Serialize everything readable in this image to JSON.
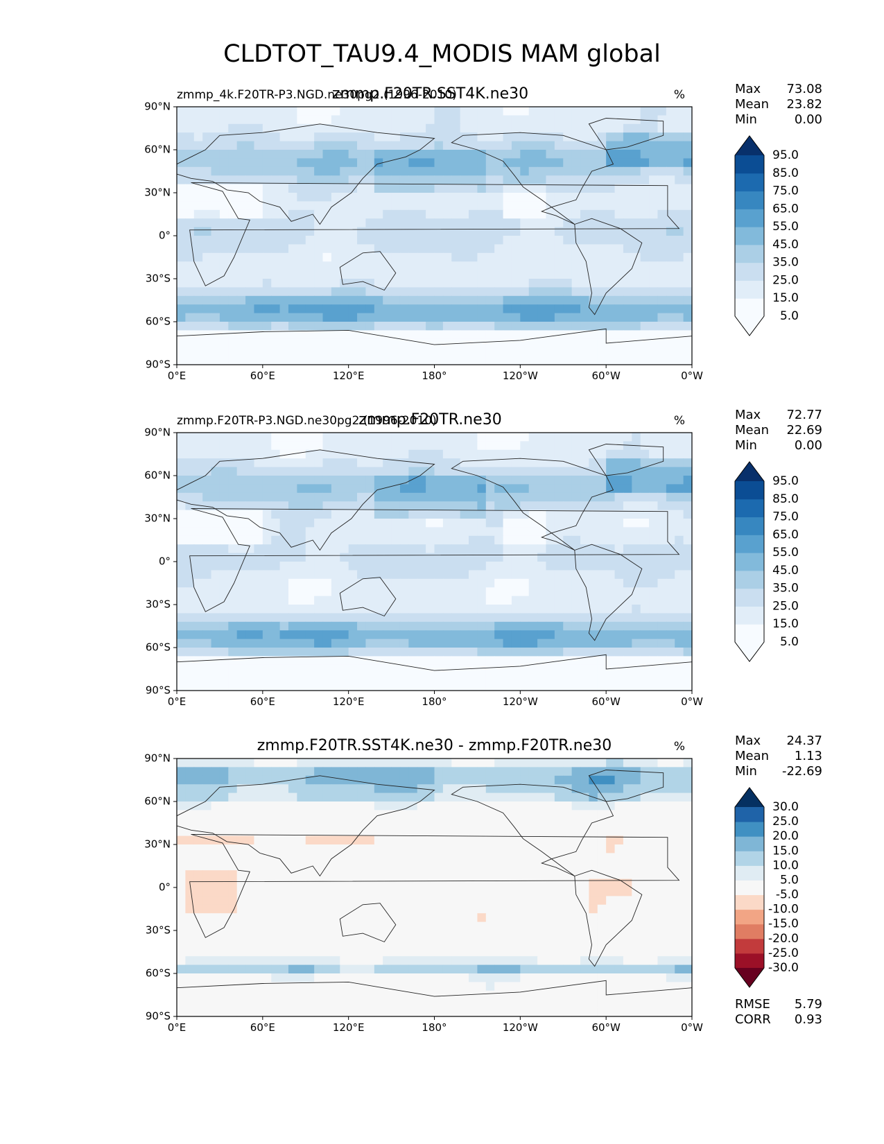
{
  "figure": {
    "title": "CLDTOT_TAU9.4_MODIS MAM global"
  },
  "chart_data": [
    {
      "type": "heatmap",
      "title": "zmmp.F20TR.SST4K.ne30",
      "left_title": "zmmp_4k.F20TR-P3.NGD.ne30pg2 (1996-2010)",
      "units": "%",
      "stats": {
        "max_label": "Max",
        "max": "73.08",
        "mean_label": "Mean",
        "mean": "23.82",
        "min_label": "Min",
        "min": "0.00"
      },
      "colorbar": {
        "ticks": [
          "5.0",
          "15.0",
          "25.0",
          "35.0",
          "45.0",
          "55.0",
          "65.0",
          "75.0",
          "85.0",
          "95.0"
        ],
        "colors": [
          "#f7fbff",
          "#f7fbff",
          "#e1edf8",
          "#cadef0",
          "#abcfe6",
          "#82badb",
          "#59a1cf",
          "#3787c0",
          "#1c6aaf",
          "#0b4d94",
          "#08306b"
        ],
        "extend": "both"
      },
      "x_ticks": [
        "0°E",
        "60°E",
        "120°E",
        "180°",
        "120°W",
        "60°W",
        "0°W"
      ],
      "y_ticks": [
        "90°N",
        "60°N",
        "30°N",
        "0°",
        "30°S",
        "60°S",
        "90°S"
      ],
      "xlim": [
        0,
        360
      ],
      "ylim": [
        -90,
        90
      ],
      "field": "model_a"
    },
    {
      "type": "heatmap",
      "title": "zmmp.F20TR.ne30",
      "left_title": "zmmp.F20TR-P3.NGD.ne30pg2 (1996-2010)",
      "units": "%",
      "stats": {
        "max_label": "Max",
        "max": "72.77",
        "mean_label": "Mean",
        "mean": "22.69",
        "min_label": "Min",
        "min": "0.00"
      },
      "colorbar": {
        "ticks": [
          "5.0",
          "15.0",
          "25.0",
          "35.0",
          "45.0",
          "55.0",
          "65.0",
          "75.0",
          "85.0",
          "95.0"
        ],
        "colors": [
          "#f7fbff",
          "#f7fbff",
          "#e1edf8",
          "#cadef0",
          "#abcfe6",
          "#82badb",
          "#59a1cf",
          "#3787c0",
          "#1c6aaf",
          "#0b4d94",
          "#08306b"
        ],
        "extend": "both"
      },
      "x_ticks": [
        "0°E",
        "60°E",
        "120°E",
        "180°",
        "120°W",
        "60°W",
        "0°W"
      ],
      "y_ticks": [
        "90°N",
        "60°N",
        "30°N",
        "0°",
        "30°S",
        "60°S",
        "90°S"
      ],
      "xlim": [
        0,
        360
      ],
      "ylim": [
        -90,
        90
      ],
      "field": "model_b"
    },
    {
      "type": "heatmap",
      "title": "zmmp.F20TR.SST4K.ne30 - zmmp.F20TR.ne30",
      "left_title": "",
      "units": "%",
      "stats": {
        "max_label": "Max",
        "max": "24.37",
        "mean_label": "Mean",
        "mean": "1.13",
        "min_label": "Min",
        "min": "-22.69"
      },
      "extra_stats": {
        "rmse_label": "RMSE",
        "rmse": "5.79",
        "corr_label": "CORR",
        "corr": "0.93"
      },
      "colorbar": {
        "ticks": [
          "-30.0",
          "-25.0",
          "-20.0",
          "-15.0",
          "-10.0",
          "-5.0",
          "5.0",
          "10.0",
          "15.0",
          "20.0",
          "25.0",
          "30.0"
        ],
        "colors": [
          "#67001f",
          "#9b1027",
          "#c23b3c",
          "#e07d63",
          "#f2a585",
          "#fbd9c7",
          "#f7f7f7",
          "#e0ecf3",
          "#b1d4e7",
          "#7fb6d6",
          "#4090c2",
          "#1f63a8",
          "#053061"
        ],
        "extend": "both"
      },
      "x_ticks": [
        "0°E",
        "60°E",
        "120°E",
        "180°",
        "120°W",
        "60°W",
        "0°W"
      ],
      "y_ticks": [
        "90°N",
        "60°N",
        "30°N",
        "0°",
        "30°S",
        "60°S",
        "90°S"
      ],
      "xlim": [
        0,
        360
      ],
      "ylim": [
        -90,
        90
      ],
      "field": "difference"
    }
  ]
}
